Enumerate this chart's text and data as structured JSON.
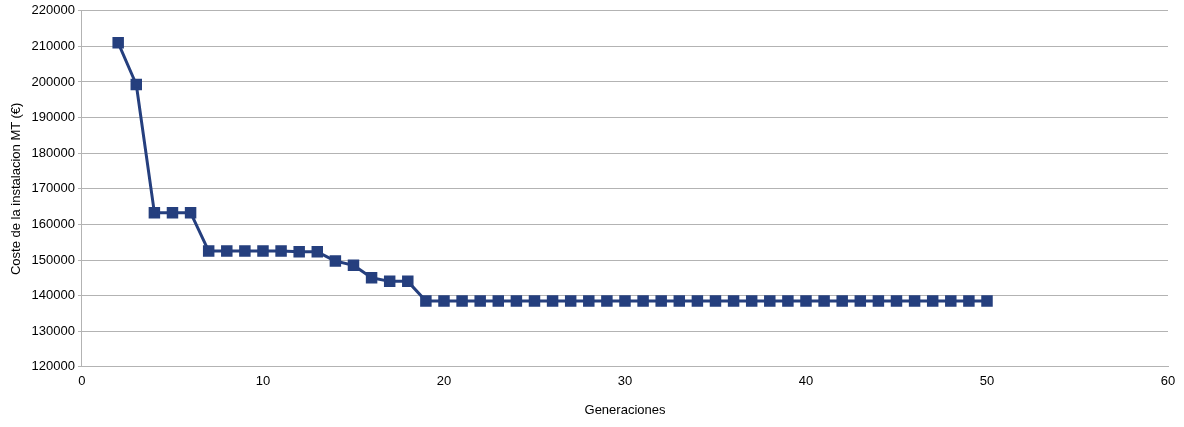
{
  "chart_data": {
    "type": "line",
    "xlabel": "Generaciones",
    "ylabel": "Coste de la instalacion MT (€)",
    "x": [
      2,
      3,
      4,
      5,
      6,
      7,
      8,
      9,
      10,
      11,
      12,
      13,
      14,
      15,
      16,
      17,
      18,
      19,
      20,
      21,
      22,
      23,
      24,
      25,
      26,
      27,
      28,
      29,
      30,
      31,
      32,
      33,
      34,
      35,
      36,
      37,
      38,
      39,
      40,
      41,
      42,
      43,
      44,
      45,
      46,
      47,
      48,
      49,
      50
    ],
    "series": [
      {
        "color": "#253f7e",
        "values": [
          211000,
          199300,
          163300,
          163300,
          163300,
          152500,
          152500,
          152500,
          152500,
          152500,
          152300,
          152300,
          149700,
          148500,
          145000,
          144000,
          144000,
          138500,
          138500,
          138500,
          138500,
          138500,
          138500,
          138500,
          138500,
          138500,
          138500,
          138500,
          138500,
          138500,
          138500,
          138500,
          138500,
          138500,
          138500,
          138500,
          138500,
          138500,
          138500,
          138500,
          138500,
          138500,
          138500,
          138500,
          138500,
          138500,
          138500,
          138500,
          138500
        ]
      }
    ],
    "xlim": [
      0,
      60
    ],
    "xticks": [
      0,
      10,
      20,
      30,
      40,
      50,
      60
    ],
    "ylim": [
      120000,
      220000
    ],
    "yticks": [
      120000,
      130000,
      140000,
      150000,
      160000,
      170000,
      180000,
      190000,
      200000,
      210000,
      220000
    ],
    "grid": "y",
    "marker": "square",
    "line_style": "solid",
    "legend": false
  }
}
